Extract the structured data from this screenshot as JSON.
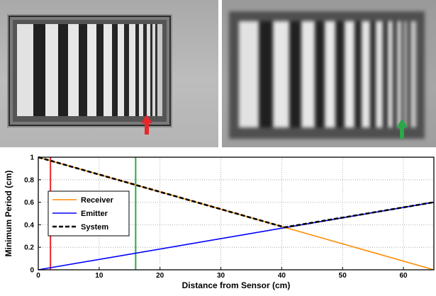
{
  "images": [
    {
      "arrow_color": "#e8262a"
    },
    {
      "arrow_color": "#2aa84a"
    }
  ],
  "chart_data": {
    "type": "line",
    "xlabel": "Distance from Sensor (cm)",
    "ylabel": "Minimum Period (cm)",
    "xlim": [
      0,
      65
    ],
    "ylim": [
      0,
      1
    ],
    "xticks": [
      0,
      10,
      20,
      30,
      40,
      50,
      60
    ],
    "yticks": [
      0,
      0.2,
      0.4,
      0.6,
      0.8,
      1
    ],
    "xtick_labels": [
      "0",
      "10",
      "20",
      "30",
      "40",
      "50",
      "60"
    ],
    "ytick_labels": [
      "0",
      "0.2",
      "0.4",
      "0.6",
      "0.8",
      "1"
    ],
    "grid": "dotted",
    "legend_position": "left",
    "series": [
      {
        "name": "Receiver",
        "color": "#ff8c00",
        "style": "solid",
        "x": [
          0,
          65
        ],
        "y": [
          1.0,
          0.0
        ]
      },
      {
        "name": "Emitter",
        "color": "#0000ff",
        "style": "solid",
        "x": [
          0,
          65
        ],
        "y": [
          0.0,
          0.6
        ]
      },
      {
        "name": "System",
        "color": "#000000",
        "style": "dashed",
        "x": [
          0,
          40.5,
          65
        ],
        "y": [
          1.0,
          0.377,
          0.6
        ]
      }
    ],
    "vertical_lines": [
      {
        "x": 2,
        "color": "#e8262a"
      },
      {
        "x": 16,
        "color": "#2aa84a"
      }
    ]
  }
}
